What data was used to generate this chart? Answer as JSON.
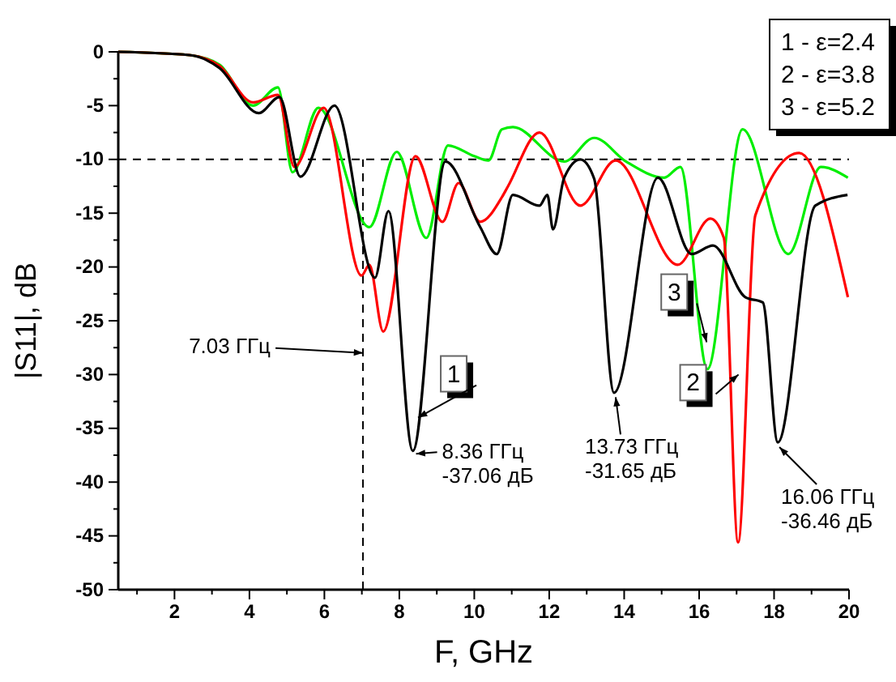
{
  "chart_data": {
    "type": "line",
    "xlabel": "F, GHz",
    "ylabel": "|S11|, dB",
    "xlim": [
      0.5,
      20
    ],
    "ylim": [
      -50,
      0
    ],
    "xticks": [
      2,
      4,
      6,
      8,
      10,
      12,
      14,
      16,
      18,
      20
    ],
    "yticks": [
      0,
      -5,
      -10,
      -15,
      -20,
      -25,
      -30,
      -35,
      -40,
      -45,
      -50
    ],
    "line_style": "solid",
    "marker": "none",
    "series": [
      {
        "color": "#000000",
        "x": [
          0.5,
          2.4,
          3.2,
          4.25,
          4.8,
          5.36,
          6.27,
          7.35,
          7.71,
          8.36,
          9.23,
          10.16,
          10.6,
          11.03,
          11.74,
          11.95,
          12.1,
          12.4,
          12.83,
          13.2,
          13.73,
          14.9,
          15.8,
          16.37,
          17.23,
          17.7,
          18.1,
          19.1,
          19.96
        ],
        "values": [
          0,
          -0.3,
          -1.5,
          -5.7,
          -4.2,
          -11.6,
          -5.0,
          -21.0,
          -14.8,
          -37.1,
          -10.2,
          -16.3,
          -18.8,
          -13.3,
          -14.3,
          -13.3,
          -16.5,
          -11.7,
          -10,
          -11.8,
          -31.7,
          -11.7,
          -18.8,
          -18,
          -22.8,
          -23.3,
          -36.3,
          -14.3,
          -13.3
        ]
      },
      {
        "color": "#ff0000",
        "x": [
          0.5,
          2.4,
          3.2,
          4.1,
          4.76,
          5.2,
          5.98,
          6.99,
          7.2,
          7.57,
          8.43,
          9.15,
          9.58,
          10.16,
          10.74,
          10.9,
          11.74,
          12.83,
          13.77,
          15.43,
          16.3,
          16.66,
          17.04,
          17.5,
          18.67,
          19.97
        ],
        "values": [
          0,
          -0.3,
          -1.3,
          -4.7,
          -4.0,
          -10.7,
          -5.2,
          -20.8,
          -19.8,
          -26,
          -9.7,
          -15.8,
          -12.2,
          -15.8,
          -13.5,
          -12.5,
          -7.5,
          -14.3,
          -10.1,
          -19.8,
          -15.5,
          -17.3,
          -45.6,
          -15.2,
          -9.4,
          -22.8
        ]
      },
      {
        "color": "#00ee00",
        "x": [
          0.5,
          2.4,
          3.2,
          4.1,
          4.76,
          5.15,
          5.84,
          7.2,
          7.93,
          8.72,
          9.3,
          10.0,
          10.38,
          10.74,
          11.03,
          12.4,
          13.2,
          14.05,
          15.07,
          15.5,
          16.22,
          17.16,
          18.38,
          19.25,
          19.97
        ],
        "values": [
          0,
          -0.3,
          -1.2,
          -5.0,
          -3.3,
          -11.2,
          -5.2,
          -16.3,
          -9.3,
          -17.3,
          -8.7,
          -9.7,
          -10.1,
          -7.2,
          -7.0,
          -10.2,
          -8.0,
          -10.2,
          -11.7,
          -10.7,
          -29.5,
          -7.2,
          -18.8,
          -10.7,
          -11.7
        ]
      }
    ],
    "ref_lines": [
      {
        "axis": "y",
        "value": -10,
        "line_style": "dashed",
        "color": "#000000"
      },
      {
        "axis": "x",
        "value": 7.03,
        "line_style": "dashed",
        "color": "#000000"
      }
    ],
    "annotations": [
      "7.03 ГГц",
      {
        "text": "8.36 ГГц\n-37.06 дБ",
        "x": 8.36,
        "y": -37.06
      },
      {
        "text": "13.73 ГГц\n-31.65 дБ",
        "x": 13.73,
        "y": -31.65
      },
      {
        "text": "16.06 ГГц\n-36.46 дБ",
        "x": 18.1,
        "y": -36.3
      },
      "1 - ε=2.4",
      "2 - ε=3.8",
      "3 - ε=5.2",
      {
        "text": "1",
        "x": 8.5,
        "y": -34
      },
      {
        "text": "2",
        "x": 17.05,
        "y": -30
      },
      {
        "text": "3",
        "x": 16.2,
        "y": -27
      }
    ]
  }
}
